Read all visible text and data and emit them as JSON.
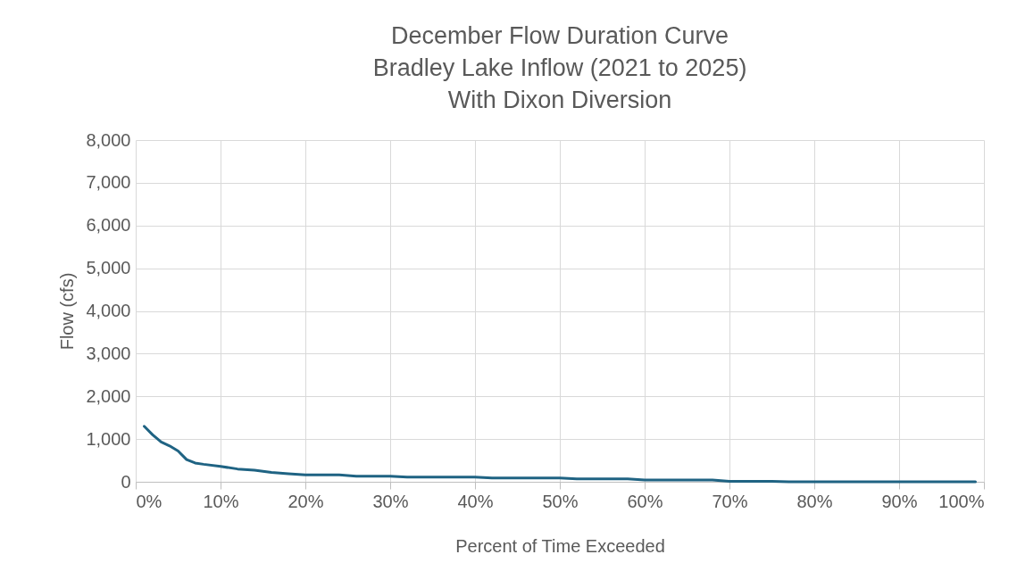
{
  "chart_data": {
    "type": "line",
    "title": [
      "December Flow Duration Curve",
      "Bradley Lake Inflow (2021 to 2025)",
      "With Dixon Diversion"
    ],
    "xlabel": "Percent of Time Exceeded",
    "ylabel": "Flow (cfs)",
    "x": [
      1,
      2,
      3,
      4,
      5,
      6,
      7,
      8,
      10,
      12,
      14,
      16,
      18,
      20,
      22,
      24,
      26,
      28,
      30,
      32,
      34,
      36,
      38,
      40,
      42,
      45,
      50,
      52,
      56,
      58,
      60,
      65,
      68,
      70,
      75,
      77,
      85,
      99
    ],
    "series": [
      {
        "color": "#1f6383",
        "values": [
          1300,
          1100,
          930,
          840,
          720,
          520,
          440,
          410,
          360,
          300,
          270,
          220,
          190,
          160,
          160,
          160,
          130,
          130,
          130,
          110,
          110,
          110,
          110,
          110,
          90,
          90,
          90,
          70,
          70,
          70,
          40,
          40,
          40,
          10,
          10,
          0,
          0,
          0
        ]
      }
    ],
    "xlim": [
      0,
      100
    ],
    "xticks": [
      {
        "value": 0,
        "label": "0%"
      },
      {
        "value": 10,
        "label": "10%"
      },
      {
        "value": 20,
        "label": "20%"
      },
      {
        "value": 30,
        "label": "30%"
      },
      {
        "value": 40,
        "label": "40%"
      },
      {
        "value": 50,
        "label": "50%"
      },
      {
        "value": 60,
        "label": "60%"
      },
      {
        "value": 70,
        "label": "70%"
      },
      {
        "value": 80,
        "label": "80%"
      },
      {
        "value": 90,
        "label": "90%"
      },
      {
        "value": 100,
        "label": "100%"
      }
    ],
    "ylim": [
      0,
      8000
    ],
    "yticks": [
      0,
      {
        "value": 1000,
        "label": "1,000"
      },
      {
        "value": 2000,
        "label": "2,000"
      },
      {
        "value": 3000,
        "label": "3,000"
      },
      {
        "value": 4000,
        "label": "4,000"
      },
      {
        "value": 5000,
        "label": "5,000"
      },
      {
        "value": 6000,
        "label": "6,000"
      },
      {
        "value": 7000,
        "label": "7,000"
      },
      {
        "value": 8000,
        "label": "8,000"
      }
    ],
    "grid": true,
    "marker": "none",
    "line_style": "solid"
  }
}
